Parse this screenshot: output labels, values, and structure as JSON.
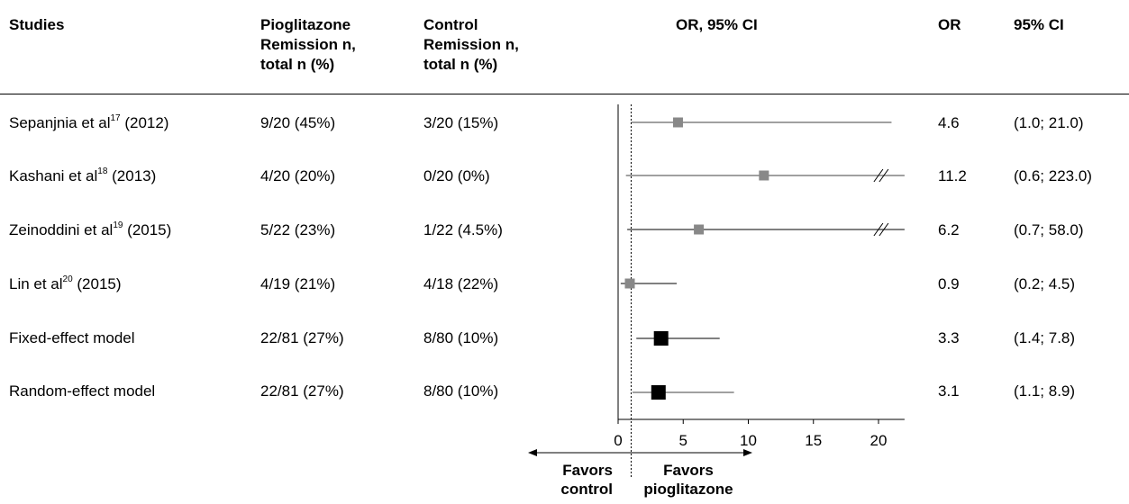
{
  "header": {
    "studies": "Studies",
    "pioglitazone": [
      "Pioglitazone",
      "Remission n,",
      "total n (%)"
    ],
    "control": [
      "Control",
      "Remission n,",
      "total n (%)"
    ],
    "plot": "OR, 95% CI",
    "or": "OR",
    "ci": "95% CI"
  },
  "rows": [
    {
      "study": "Sepanjnia et al",
      "ref": "17",
      "year": " (2012)",
      "pio": "9/20 (45%)",
      "ctrl": "3/20 (15%)",
      "or": "4.6",
      "ci": "(1.0; 21.0)"
    },
    {
      "study": "Kashani et al",
      "ref": "18",
      "year": " (2013)",
      "pio": "4/20 (20%)",
      "ctrl": "0/20 (0%)",
      "or": "11.2",
      "ci": "(0.6; 223.0)"
    },
    {
      "study": "Zeinoddini et al",
      "ref": "19",
      "year": " (2015)",
      "pio": "5/22 (23%)",
      "ctrl": "1/22 (4.5%)",
      "or": "6.2",
      "ci": "(0.7; 58.0)"
    },
    {
      "study": "Lin et al",
      "ref": "20",
      "year": " (2015)",
      "pio": "4/19 (21%)",
      "ctrl": "4/18 (22%)",
      "or": "0.9",
      "ci": "(0.2; 4.5)"
    },
    {
      "study": "Fixed-effect model",
      "ref": "",
      "year": "",
      "pio": "22/81 (27%)",
      "ctrl": "8/80 (10%)",
      "or": "3.3",
      "ci": "(1.4; 7.8)"
    },
    {
      "study": "Random-effect model",
      "ref": "",
      "year": "",
      "pio": "22/81 (27%)",
      "ctrl": "8/80 (10%)",
      "or": "3.1",
      "ci": "(1.1; 8.9)"
    }
  ],
  "chart_data": {
    "type": "forest",
    "xlim": [
      0,
      22
    ],
    "xticks": [
      "0",
      "5",
      "10",
      "15",
      "20"
    ],
    "reference_line": 1,
    "favors_left": [
      "Favors",
      "control"
    ],
    "favors_right": [
      "Favors",
      "pioglitazone"
    ],
    "points": [
      {
        "label": "Sepanjnia et al (2012)",
        "or": 4.6,
        "lo": 1.0,
        "hi": 21.0,
        "truncated": false,
        "pooled": false
      },
      {
        "label": "Kashani et al (2013)",
        "or": 11.2,
        "lo": 0.6,
        "hi": 223.0,
        "truncated": true,
        "pooled": false
      },
      {
        "label": "Zeinoddini et al (2015)",
        "or": 6.2,
        "lo": 0.7,
        "hi": 58.0,
        "truncated": true,
        "pooled": false
      },
      {
        "label": "Lin et al (2015)",
        "or": 0.9,
        "lo": 0.2,
        "hi": 4.5,
        "truncated": false,
        "pooled": false
      },
      {
        "label": "Fixed-effect model",
        "or": 3.3,
        "lo": 1.4,
        "hi": 7.8,
        "truncated": false,
        "pooled": true
      },
      {
        "label": "Random-effect model",
        "or": 3.1,
        "lo": 1.1,
        "hi": 8.9,
        "truncated": false,
        "pooled": true
      }
    ],
    "colors": {
      "study_marker": "#888888",
      "pooled_marker": "#000000",
      "line": "#000000"
    }
  }
}
